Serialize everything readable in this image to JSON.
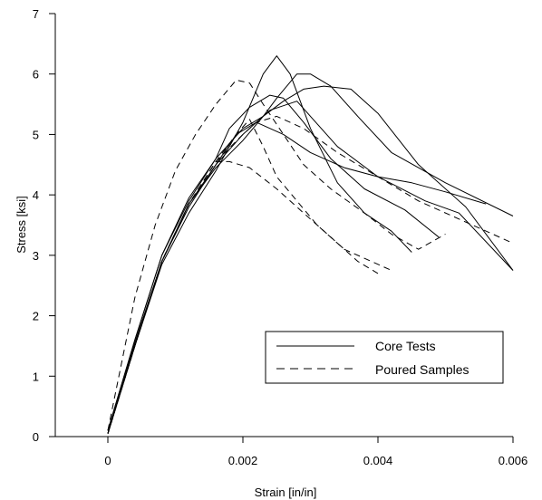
{
  "chart_data": {
    "type": "line",
    "title": "",
    "xlabel": "Strain [in/in]",
    "ylabel": "Stress [ksi]",
    "xlim": [
      -0.0006,
      0.006
    ],
    "ylim": [
      0,
      7
    ],
    "xticks": [
      0,
      0.002,
      0.004,
      0.006
    ],
    "xtick_labels": [
      "0",
      "0.002",
      "0.004",
      "0.006"
    ],
    "yticks": [
      0,
      1,
      2,
      3,
      4,
      5,
      6,
      7
    ],
    "ytick_labels": [
      "0",
      "1",
      "2",
      "3",
      "4",
      "5",
      "6",
      "7"
    ],
    "grid": false,
    "legend_position": "lower-right",
    "legend": [
      {
        "label": "Core Tests",
        "style": "solid"
      },
      {
        "label": "Poured Samples",
        "style": "dashed"
      }
    ],
    "series": [
      {
        "group": "Core Tests",
        "style": "solid",
        "points": [
          [
            0,
            0.05
          ],
          [
            0.0004,
            1.5
          ],
          [
            0.0008,
            2.9
          ],
          [
            0.0012,
            3.8
          ],
          [
            0.0016,
            4.5
          ],
          [
            0.0019,
            5.0
          ],
          [
            0.0022,
            5.2
          ],
          [
            0.0026,
            5.0
          ],
          [
            0.003,
            4.7
          ],
          [
            0.0035,
            4.45
          ],
          [
            0.004,
            4.3
          ],
          [
            0.0045,
            4.2
          ],
          [
            0.005,
            4.05
          ],
          [
            0.0056,
            3.85
          ]
        ]
      },
      {
        "group": "Core Tests",
        "style": "solid",
        "points": [
          [
            0,
            0.1
          ],
          [
            0.0004,
            1.6
          ],
          [
            0.0008,
            3.0
          ],
          [
            0.0012,
            3.9
          ],
          [
            0.0016,
            4.6
          ],
          [
            0.002,
            5.1
          ],
          [
            0.0023,
            5.3
          ],
          [
            0.0026,
            5.55
          ],
          [
            0.0029,
            5.75
          ],
          [
            0.0032,
            5.8
          ],
          [
            0.0036,
            5.75
          ],
          [
            0.004,
            5.35
          ],
          [
            0.0046,
            4.5
          ],
          [
            0.0053,
            3.8
          ],
          [
            0.006,
            2.75
          ]
        ]
      },
      {
        "group": "Core Tests",
        "style": "solid",
        "points": [
          [
            0,
            0.05
          ],
          [
            0.0004,
            1.5
          ],
          [
            0.0008,
            2.85
          ],
          [
            0.0012,
            3.7
          ],
          [
            0.0016,
            4.4
          ],
          [
            0.002,
            5.2
          ],
          [
            0.0023,
            6.0
          ],
          [
            0.0025,
            6.3
          ],
          [
            0.0027,
            6.0
          ],
          [
            0.003,
            5.1
          ],
          [
            0.0034,
            4.2
          ],
          [
            0.0038,
            3.7
          ],
          [
            0.0042,
            3.4
          ],
          [
            0.0045,
            3.05
          ]
        ]
      },
      {
        "group": "Core Tests",
        "style": "solid",
        "points": [
          [
            0,
            0.05
          ],
          [
            0.0004,
            1.55
          ],
          [
            0.0008,
            2.9
          ],
          [
            0.0012,
            3.85
          ],
          [
            0.0016,
            4.45
          ],
          [
            0.002,
            4.9
          ],
          [
            0.0023,
            5.3
          ],
          [
            0.0025,
            5.6
          ],
          [
            0.0028,
            6.0
          ],
          [
            0.003,
            6.0
          ],
          [
            0.0033,
            5.8
          ],
          [
            0.0037,
            5.3
          ],
          [
            0.0042,
            4.7
          ],
          [
            0.005,
            4.2
          ],
          [
            0.006,
            3.65
          ]
        ]
      },
      {
        "group": "Core Tests",
        "style": "solid",
        "points": [
          [
            0,
            0.1
          ],
          [
            0.0004,
            1.6
          ],
          [
            0.0008,
            3.0
          ],
          [
            0.0012,
            3.95
          ],
          [
            0.0016,
            4.6
          ],
          [
            0.0018,
            5.1
          ],
          [
            0.0021,
            5.45
          ],
          [
            0.0024,
            5.65
          ],
          [
            0.0026,
            5.6
          ],
          [
            0.0029,
            5.2
          ],
          [
            0.0033,
            4.6
          ],
          [
            0.0038,
            4.1
          ],
          [
            0.0044,
            3.75
          ],
          [
            0.0049,
            3.3
          ]
        ]
      },
      {
        "group": "Core Tests",
        "style": "solid",
        "points": [
          [
            0,
            0.05
          ],
          [
            0.0004,
            1.5
          ],
          [
            0.0008,
            2.9
          ],
          [
            0.0012,
            3.85
          ],
          [
            0.0016,
            4.5
          ],
          [
            0.002,
            5.0
          ],
          [
            0.0024,
            5.4
          ],
          [
            0.0028,
            5.55
          ],
          [
            0.003,
            5.3
          ],
          [
            0.0034,
            4.8
          ],
          [
            0.004,
            4.3
          ],
          [
            0.0047,
            3.9
          ],
          [
            0.0052,
            3.7
          ],
          [
            0.006,
            2.75
          ]
        ]
      },
      {
        "group": "Poured Samples",
        "style": "dashed",
        "points": [
          [
            0,
            0.1
          ],
          [
            0.0002,
            1.2
          ],
          [
            0.0004,
            2.3
          ],
          [
            0.0007,
            3.5
          ],
          [
            0.001,
            4.4
          ],
          [
            0.0013,
            5.0
          ],
          [
            0.0016,
            5.5
          ],
          [
            0.0019,
            5.9
          ],
          [
            0.0021,
            5.85
          ],
          [
            0.0023,
            5.5
          ],
          [
            0.0026,
            5.0
          ],
          [
            0.0029,
            4.5
          ],
          [
            0.0033,
            4.1
          ],
          [
            0.0038,
            3.7
          ],
          [
            0.0042,
            3.35
          ],
          [
            0.0046,
            3.1
          ],
          [
            0.005,
            3.35
          ]
        ]
      },
      {
        "group": "Poured Samples",
        "style": "dashed",
        "points": [
          [
            0,
            0.05
          ],
          [
            0.0004,
            1.5
          ],
          [
            0.0008,
            2.9
          ],
          [
            0.0012,
            3.85
          ],
          [
            0.0016,
            4.55
          ],
          [
            0.0018,
            4.55
          ],
          [
            0.0021,
            4.45
          ],
          [
            0.0025,
            4.1
          ],
          [
            0.0029,
            3.7
          ],
          [
            0.0033,
            3.3
          ],
          [
            0.0037,
            2.9
          ],
          [
            0.004,
            2.7
          ]
        ]
      },
      {
        "group": "Poured Samples",
        "style": "dashed",
        "points": [
          [
            0,
            0.05
          ],
          [
            0.0004,
            1.5
          ],
          [
            0.0008,
            2.9
          ],
          [
            0.0012,
            3.85
          ],
          [
            0.0016,
            4.55
          ],
          [
            0.0019,
            5.0
          ],
          [
            0.0021,
            5.25
          ],
          [
            0.0023,
            4.8
          ],
          [
            0.0025,
            4.3
          ],
          [
            0.0028,
            3.9
          ],
          [
            0.0031,
            3.5
          ],
          [
            0.0035,
            3.1
          ],
          [
            0.0039,
            2.9
          ],
          [
            0.0042,
            2.75
          ]
        ]
      },
      {
        "group": "Poured Samples",
        "style": "dashed",
        "points": [
          [
            0,
            0.05
          ],
          [
            0.0004,
            1.5
          ],
          [
            0.0008,
            2.9
          ],
          [
            0.0012,
            3.85
          ],
          [
            0.0016,
            4.55
          ],
          [
            0.002,
            5.0
          ],
          [
            0.0022,
            5.2
          ],
          [
            0.0025,
            5.3
          ],
          [
            0.0029,
            5.1
          ],
          [
            0.0034,
            4.7
          ],
          [
            0.004,
            4.3
          ],
          [
            0.0046,
            3.9
          ],
          [
            0.0052,
            3.6
          ],
          [
            0.006,
            3.2
          ]
        ]
      }
    ]
  }
}
